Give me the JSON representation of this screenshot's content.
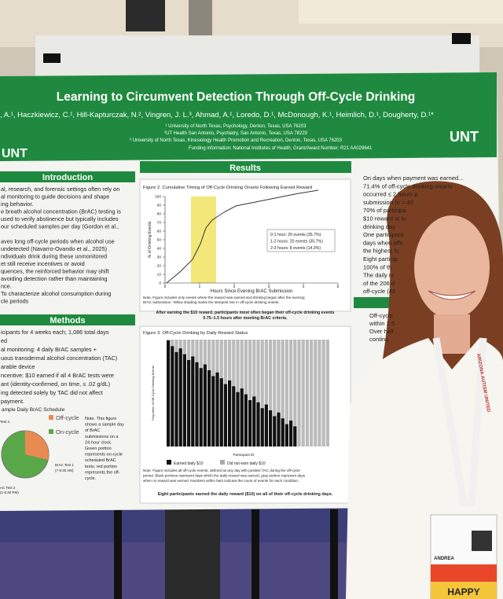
{
  "poster": {
    "title": "Learning to Circumvent Detection Through Off-Cycle Drinking",
    "authors": ", A.¹, Haczkiewicz, C.¹, Hill-Kapturczak, N.², Vingren, J. L.³, Ahmad, A.¹, Loredo, D.¹, McDonough, K.¹, Heimlich, D.¹, Dougherty, D.¹*",
    "affiliations": [
      "¹ University of North Texas, Psychology, Denton, Texas, USA 76203",
      "²UT Health San Antonio, Psychiatry, San Antonio, Texas, USA 78229",
      "³ University of North Texas, Kinesiology Health Promotion and Recreation, Denton, Texas, USA 76203"
    ],
    "funding": "Funding information: National Institutes of Health, Grant/Award Number: R21 AA029641",
    "logo_left": "UNT",
    "logo_right": "UNT",
    "introduction": {
      "heading": "Introduction",
      "lines": [
        "al, research, and forensic settings often rely on",
        "al monitoring to guide decisions and shape",
        "ing behavior.",
        "e breath alcohol concentration (BrAC) testing is",
        "used to verify abstinence but typically includes",
        "our scheduled samples per day (Gordon et al.,",
        "",
        "aves long off-cycle periods when alcohol use",
        "undetected (Navarro-Ovando et al., 2025)",
        "ndividuals drink during these unmonitored",
        "et still receive incentives or avoid",
        "quences, the reinforced behavior may shift",
        "avoiding detection rather than maintaining",
        "nce.",
        "To characterize alcohol consumption during",
        "cle periods"
      ]
    },
    "methods": {
      "heading": "Methods",
      "lines": [
        "icipants for 4 weeks each; 1,086 total days",
        "ed",
        "al monitoring: 4 daily BrAC samples +",
        "uous transdermal alcohol concentration (TAC)",
        "arable device",
        "ncentive: $10 earned if all 4 BrAC tests were",
        "ant (identity-confirmed, on time, ≤ .02 g/dL)",
        "ing detected solely by TAC did not affect",
        "payment."
      ],
      "schedule_title": "ample Daily BrAC Schedule",
      "legend": [
        "Off-cycle",
        "On-cycle"
      ],
      "note": [
        "Note. This figure",
        "shows a sample day",
        "of BrAC",
        "submissions on a",
        "24-hour clock.",
        "Green portion",
        "represents on-cycle",
        "scheduled BrAC",
        "tests; red portion",
        "represents the off-",
        "cycle."
      ],
      "pie_labels": [
        "Test 4",
        "BrAC Test 1",
        "(7-8:30 AM)",
        "AC Test 2",
        "(1-5:30 PM)"
      ]
    },
    "results": {
      "heading": "Results",
      "figure2": {
        "title": "Figure 2. Cumulative Timing of Off-Cycle Drinking Onsets Following Earned Reward",
        "ylabel": "% of Drinking Events",
        "xlabel": "Hours Since Evening BrAC Submission",
        "yticks": [
          0,
          10,
          20,
          30,
          40,
          50,
          60,
          70,
          80,
          90,
          100
        ],
        "xticks": [
          0,
          1,
          2,
          3,
          4,
          5
        ],
        "legend": [
          "0-1 hour: 20 events (35.7%)",
          "1-2 hours: 20 events (35.7%)",
          "2-3 hours: 8 events (14.3%)"
        ],
        "note": [
          "Note. Figure includes only events where the reward was earned and drinking began after the evening",
          "BrAC submission. Yellow shading marks the steepest rise in off-cycle drinking onsets."
        ],
        "finding": [
          "After earning the $10 reward, participants most often began their off-cycle drinking events",
          "0.75–1.5 hours after meeting BrAC criteria."
        ]
      },
      "figure3": {
        "title": "Figure 3. Off-Cycle Drinking by Daily Reward Status",
        "ylabel": "Proportion of Off-Cycle Drinking Events",
        "xlabel": "Participant ID",
        "legend": [
          "Earned daily $10",
          "Did not earn daily $10"
        ],
        "note": [
          "Note. Figure includes all off-cycle events, defined as any day with positive TAC during the off-cycle",
          "period. Black portions represent days which the daily reward was earned, gray portion represent days",
          "when no reward was earned. Numbers within bars indicate the count of events for each condition."
        ],
        "finding": "Eight participants earned the daily reward ($10) on all of their off-cycle drinking days."
      },
      "lines": [
        "On days when payment was earned...",
        "71.4% of off-cycle drinking onsets",
        "occurred ≤ 2 hours p",
        "submission (n = 40",
        "70% of participa",
        "$10 reward at le",
        "drinking day.",
        "One participant",
        "days when offe",
        "the highest fo",
        "Eight particip",
        "100% of th",
        "The daily re",
        "of the 206 d",
        "off-cycle (48"
      ],
      "lines2": [
        "Off-cycle",
        "within 1.5",
        "Over half",
        "continu"
      ]
    },
    "badge": {
      "name": "ANDREA",
      "tag": "HAPPY",
      "lanyard": "ARIZONA AUTISM UNITED"
    }
  }
}
